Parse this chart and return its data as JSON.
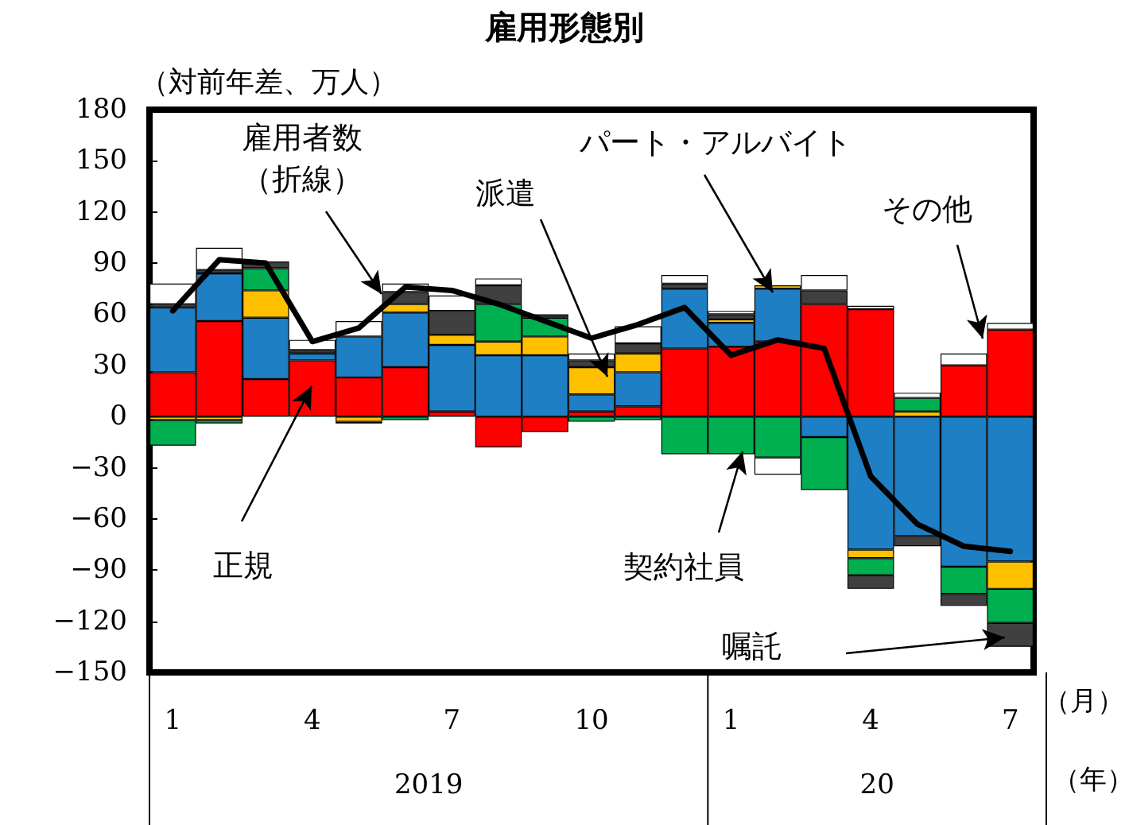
{
  "chart_data": {
    "type": "bar",
    "title": "雇用形態別",
    "ylabel": "（対前年差、万人）",
    "xlabel": "（月）",
    "annotations": [
      "2019",
      "20",
      "（年）"
    ],
    "categories": [
      "1",
      null,
      null,
      "4",
      null,
      null,
      "7",
      null,
      null,
      "10",
      null,
      null,
      "1",
      null,
      null,
      "4",
      null,
      null,
      "7"
    ],
    "stacked": true,
    "legend": false,
    "grid": false,
    "marker": "none",
    "line_style": "solid",
    "ylim": [
      -150,
      180
    ],
    "yticks": [
      {
        "value": -150,
        "label": "−150"
      },
      {
        "value": -120,
        "label": "−120"
      },
      {
        "value": -90,
        "label": "−90"
      },
      {
        "value": -60,
        "label": "−60"
      },
      {
        "value": -30,
        "label": "−30"
      },
      0,
      30,
      60,
      90,
      120,
      150,
      180
    ],
    "series": [
      {
        "name": "正規",
        "color": "#ff0000",
        "values": [
          26,
          56,
          22,
          33,
          23,
          29,
          3,
          -18,
          -9,
          3,
          6,
          40,
          41,
          44,
          66,
          63,
          null,
          30,
          51
        ]
      },
      {
        "name": "パート・アルバイト",
        "color": "#1f7fc4",
        "values": [
          38,
          28,
          36,
          4,
          24,
          32,
          39,
          36,
          36,
          10,
          20,
          35,
          14,
          31,
          -12,
          -78,
          -70,
          -88,
          -85
        ]
      },
      {
        "name": "派遣",
        "color": "#ffc000",
        "values": [
          -2,
          -2,
          16,
          null,
          -3,
          5,
          6,
          8,
          11,
          16,
          11,
          null,
          2,
          2,
          null,
          -5,
          3,
          null,
          -16
        ]
      },
      {
        "name": "契約社員",
        "color": "#00b050",
        "values": [
          -15,
          -2,
          13,
          null,
          null,
          -2,
          null,
          22,
          11,
          -3,
          -2,
          -22,
          -22,
          -24,
          -31,
          -10,
          8,
          -16,
          -20
        ]
      },
      {
        "name": "嘱託",
        "color": "#404040",
        "values": [
          2,
          2,
          4,
          2,
          -1,
          7,
          14,
          11,
          2,
          4,
          6,
          3,
          3,
          null,
          8,
          -8,
          -6,
          -7,
          -14
        ]
      },
      {
        "name": "その他",
        "color": "#ffffff",
        "values": [
          12,
          13,
          null,
          6,
          9,
          5,
          9,
          4,
          null,
          4,
          10,
          5,
          2,
          -10,
          9,
          2,
          3,
          7,
          4
        ]
      },
      {
        "name": "雇用者数（折線）",
        "type": "line",
        "color": "#000000",
        "values": [
          62,
          92,
          90,
          44,
          52,
          76,
          74,
          66,
          56,
          46,
          54,
          64,
          36,
          45,
          40,
          -35,
          -63,
          -76,
          -79
        ]
      }
    ]
  }
}
